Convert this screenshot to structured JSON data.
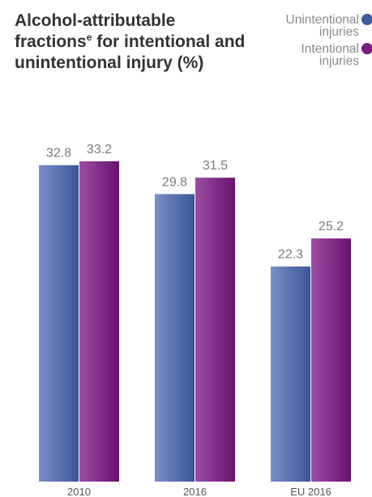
{
  "chart_data": {
    "type": "bar",
    "title": {
      "line1": "Alcohol-attributable",
      "line2_main": "fractions",
      "line2_sup": "e",
      "line2_rest": " for intentional and",
      "line3": "unintentional injury (%)"
    },
    "categories": [
      "2010",
      "2016",
      "EU 2016"
    ],
    "series": [
      {
        "name": [
          "Unintentional",
          "injuries"
        ],
        "values": [
          32.8,
          29.8,
          22.3
        ],
        "color": "#3f5ba1"
      },
      {
        "name": [
          "Intentional",
          "injuries"
        ],
        "values": [
          33.2,
          31.5,
          25.2
        ],
        "color": "#7a1c80"
      }
    ],
    "ylim": [
      0,
      40
    ],
    "legend_position": "top-right",
    "grid": false
  }
}
